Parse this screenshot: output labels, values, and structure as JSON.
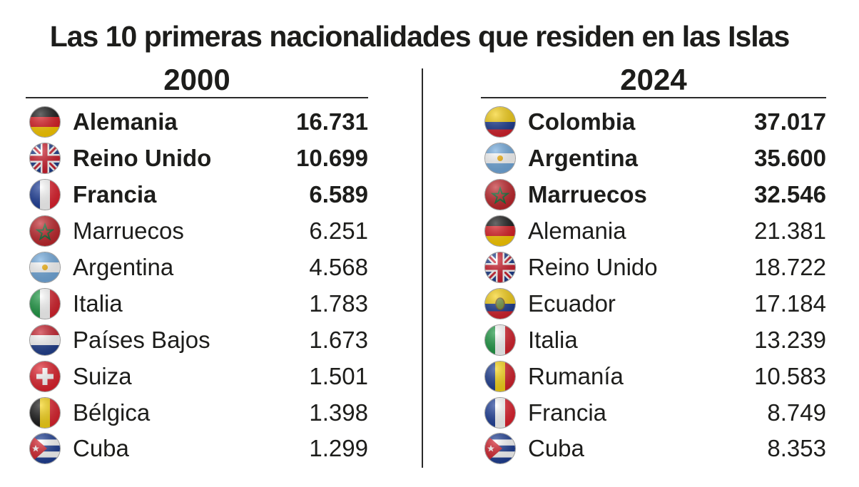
{
  "chart_data": [
    {
      "type": "table",
      "title": "Las 10 primeras nacionalidades que residen en las Islas",
      "year": "2000",
      "rows": [
        {
          "country": "Alemania",
          "value": "16.731",
          "flag": "germany",
          "bold": true
        },
        {
          "country": "Reino Unido",
          "value": "10.699",
          "flag": "uk",
          "bold": true
        },
        {
          "country": "Francia",
          "value": "6.589",
          "flag": "france",
          "bold": true
        },
        {
          "country": "Marruecos",
          "value": "6.251",
          "flag": "morocco",
          "bold": false
        },
        {
          "country": "Argentina",
          "value": "4.568",
          "flag": "argentina",
          "bold": false
        },
        {
          "country": "Italia",
          "value": "1.783",
          "flag": "italy",
          "bold": false
        },
        {
          "country": "Países Bajos",
          "value": "1.673",
          "flag": "netherlands",
          "bold": false
        },
        {
          "country": "Suiza",
          "value": "1.501",
          "flag": "switzerland",
          "bold": false
        },
        {
          "country": "Bélgica",
          "value": "1.398",
          "flag": "belgium",
          "bold": false
        },
        {
          "country": "Cuba",
          "value": "1.299",
          "flag": "cuba",
          "bold": false
        }
      ]
    },
    {
      "type": "table",
      "year": "2024",
      "rows": [
        {
          "country": "Colombia",
          "value": "37.017",
          "flag": "colombia",
          "bold": true
        },
        {
          "country": "Argentina",
          "value": "35.600",
          "flag": "argentina",
          "bold": true
        },
        {
          "country": "Marruecos",
          "value": "32.546",
          "flag": "morocco",
          "bold": true
        },
        {
          "country": "Alemania",
          "value": "21.381",
          "flag": "germany",
          "bold": false
        },
        {
          "country": "Reino Unido",
          "value": "18.722",
          "flag": "uk",
          "bold": false
        },
        {
          "country": "Ecuador",
          "value": "17.184",
          "flag": "ecuador",
          "bold": false
        },
        {
          "country": "Italia",
          "value": "13.239",
          "flag": "italy",
          "bold": false
        },
        {
          "country": "Rumanía",
          "value": "10.583",
          "flag": "romania",
          "bold": false
        },
        {
          "country": "Francia",
          "value": "8.749",
          "flag": "france",
          "bold": false
        },
        {
          "country": "Cuba",
          "value": "8.353",
          "flag": "cuba",
          "bold": false
        }
      ]
    }
  ]
}
